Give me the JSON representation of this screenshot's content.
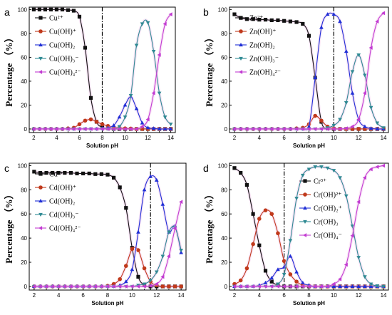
{
  "colors": {
    "black": "#111111",
    "red": "#c0391b",
    "blue": "#1f2fd6",
    "teal": "#2f8a93",
    "magenta": "#c23cd2",
    "axis": "#000000"
  },
  "chart_data": [
    {
      "panel": "a",
      "type": "line",
      "xlabel": "Solution pH",
      "ylabel": "Percentage （%）",
      "xlim": [
        1.6,
        14.4
      ],
      "ylim": [
        -3,
        102
      ],
      "xticks": [
        "2",
        "4",
        "6",
        "8",
        "10",
        "12",
        "14"
      ],
      "yticks": [
        "0",
        "20",
        "40",
        "60",
        "80",
        "100"
      ],
      "grid": false,
      "legend": "left",
      "vline": 8.0,
      "x": [
        2,
        2.5,
        3,
        3.5,
        4,
        4.5,
        5,
        5.5,
        6,
        6.5,
        7,
        7.5,
        8,
        8.5,
        9,
        9.5,
        10,
        10.5,
        11,
        11.5,
        12,
        12.5,
        13,
        13.5,
        14
      ],
      "series": [
        {
          "name": "Cu²⁺",
          "marker": "square",
          "color": "black",
          "values": [
            100,
            100,
            100,
            100,
            100,
            100,
            99.5,
            99,
            94,
            68,
            26,
            6,
            1.5,
            0.5,
            0,
            0,
            0,
            0,
            0,
            0,
            0,
            0,
            0,
            0,
            0
          ]
        },
        {
          "name": "Cu(OH)⁺",
          "marker": "circle",
          "color": "red",
          "values": [
            0,
            0,
            0,
            0,
            0,
            0,
            0.5,
            1,
            4,
            7,
            8,
            6,
            4,
            2.5,
            1.5,
            1,
            0.5,
            0.3,
            0,
            0,
            0,
            0,
            0,
            0,
            0
          ]
        },
        {
          "name": "Cu(OH)₂",
          "marker": "triangle-up",
          "color": "blue",
          "values": [
            0,
            0,
            0,
            0,
            0,
            0,
            0,
            0,
            0,
            0,
            0,
            0,
            0.5,
            1,
            3,
            10,
            20,
            27,
            17,
            5,
            1,
            0.5,
            0,
            0,
            0
          ]
        },
        {
          "name": "Cu(OH)₃⁻",
          "marker": "triangle-down",
          "color": "teal",
          "values": [
            0,
            0,
            0,
            0,
            0,
            0,
            0,
            0,
            0,
            0,
            0,
            0,
            0,
            0,
            0,
            2,
            10,
            28,
            70,
            88,
            89,
            65,
            30,
            10,
            4
          ]
        },
        {
          "name": "Cu(OH)₄²⁻",
          "marker": "triangle-left",
          "color": "magenta",
          "values": [
            0,
            0,
            0,
            0,
            0,
            0,
            0,
            0,
            0,
            0,
            0,
            0,
            0,
            0,
            0,
            0,
            0,
            0,
            0,
            2,
            8,
            30,
            62,
            88,
            96
          ]
        }
      ]
    },
    {
      "panel": "b",
      "type": "line",
      "xlabel": "Solution pH",
      "ylabel": "Percentage （%）",
      "xlim": [
        1.6,
        14.4
      ],
      "ylim": [
        -3,
        102
      ],
      "xticks": [
        "2",
        "4",
        "6",
        "8",
        "10",
        "12",
        "14"
      ],
      "yticks": [
        "0",
        "20",
        "40",
        "60",
        "80",
        "100"
      ],
      "grid": false,
      "legend": "left",
      "vline": 10.0,
      "x": [
        2,
        2.5,
        3,
        3.5,
        4,
        4.5,
        5,
        5.5,
        6,
        6.5,
        7,
        7.5,
        8,
        8.5,
        9,
        9.5,
        10,
        10.5,
        11,
        11.5,
        12,
        12.5,
        13,
        13.5,
        14
      ],
      "series": [
        {
          "name": "Zn²⁺",
          "marker": "square",
          "color": "black",
          "values": [
            96,
            93,
            92,
            92,
            91.5,
            91.5,
            91,
            91,
            90.5,
            90,
            89.5,
            88,
            78,
            43,
            6,
            0.5,
            0,
            0,
            0,
            0,
            0,
            0,
            0,
            0,
            0
          ]
        },
        {
          "name": "Zn(OH)⁺",
          "marker": "circle",
          "color": "red",
          "values": [
            0,
            0,
            0,
            0,
            0,
            0,
            0,
            0,
            0,
            0,
            0.5,
            1,
            4,
            11,
            7,
            2,
            0.5,
            0,
            0,
            0,
            0,
            0,
            0,
            0,
            0
          ]
        },
        {
          "name": "Zn(OH)₂",
          "marker": "triangle-up",
          "color": "blue",
          "values": [
            0,
            0,
            0,
            0,
            0,
            0,
            0,
            0,
            0,
            0,
            0,
            0,
            2,
            43,
            85,
            96,
            96,
            90,
            65,
            30,
            8,
            2,
            0.5,
            0,
            0
          ]
        },
        {
          "name": "Zn(OH)₃⁻",
          "marker": "triangle-down",
          "color": "teal",
          "values": [
            0,
            0,
            0,
            0,
            0,
            0,
            0,
            0,
            0,
            0,
            0,
            0,
            0,
            0,
            0,
            1,
            3,
            8,
            22,
            48,
            62,
            45,
            18,
            5,
            1
          ]
        },
        {
          "name": "Zn(OH)₄²⁻",
          "marker": "triangle-left",
          "color": "magenta",
          "values": [
            0,
            0,
            0,
            0,
            0,
            0,
            0,
            0,
            0,
            0,
            0,
            0,
            0,
            0,
            0,
            0,
            0,
            0,
            0.5,
            2,
            8,
            30,
            68,
            90,
            97
          ]
        }
      ]
    },
    {
      "panel": "c",
      "type": "line",
      "xlabel": "Solution pH",
      "ylabel": "Percentage （%）",
      "xlim": [
        1.6,
        14.4
      ],
      "ylim": [
        -3,
        102
      ],
      "xticks": [
        "2",
        "4",
        "6",
        "8",
        "10",
        "12",
        "14"
      ],
      "yticks": [
        "0",
        "20",
        "40",
        "60",
        "80",
        "100"
      ],
      "grid": false,
      "legend": "left",
      "vline": 11.5,
      "x": [
        2,
        2.5,
        3,
        3.5,
        4,
        4.5,
        5,
        5.5,
        6,
        6.5,
        7,
        7.5,
        8,
        8.5,
        9,
        9.5,
        10,
        10.5,
        11,
        11.5,
        12,
        12.5,
        13,
        13.5,
        14
      ],
      "series": [
        {
          "name": "Cd²⁺",
          "marker": "square",
          "color": "black",
          "values": [
            95,
            94,
            94,
            94,
            94,
            94,
            94,
            93.5,
            93.5,
            93.5,
            93,
            93,
            92.5,
            90,
            82,
            65,
            32,
            8,
            1,
            0,
            0,
            0,
            0,
            0,
            0
          ]
        },
        {
          "name": "Cd(OH)⁺",
          "marker": "circle",
          "color": "red",
          "values": [
            0,
            0,
            0,
            0,
            0,
            0,
            0,
            0,
            0,
            0,
            0,
            0,
            0.5,
            2,
            6,
            17,
            31,
            30,
            15,
            4,
            1,
            0,
            0,
            0,
            0
          ]
        },
        {
          "name": "Cd(OH)₂",
          "marker": "triangle-up",
          "color": "blue",
          "values": [
            0,
            0,
            0,
            0,
            0,
            0,
            0,
            0,
            0,
            0,
            0,
            0,
            0,
            0,
            1,
            4,
            14,
            45,
            80,
            91,
            88,
            68,
            45,
            50,
            28
          ]
        },
        {
          "name": "Cd(OH)₃⁻",
          "marker": "triangle-down",
          "color": "teal",
          "values": [
            0,
            0,
            0,
            0,
            0,
            0,
            0,
            0,
            0,
            0,
            0,
            0,
            0,
            0,
            0,
            0,
            0,
            1,
            2,
            5,
            12,
            25,
            45,
            49,
            30
          ]
        },
        {
          "name": "Cd(OH)₄²⁻",
          "marker": "triangle-left",
          "color": "magenta",
          "values": [
            0,
            0,
            0,
            0,
            0,
            0,
            0,
            0,
            0,
            0,
            0,
            0,
            0,
            0,
            0,
            0,
            0,
            0,
            0,
            0.5,
            2,
            8,
            25,
            48,
            70
          ]
        }
      ]
    },
    {
      "panel": "d",
      "type": "line",
      "xlabel": "Solution pH",
      "ylabel": "Percentage （%）",
      "xlim": [
        1.6,
        14.4
      ],
      "ylim": [
        -3,
        102
      ],
      "xticks": [
        "2",
        "4",
        "6",
        "8",
        "10",
        "12",
        "14"
      ],
      "yticks": [
        "0",
        "20",
        "40",
        "60",
        "80",
        "100"
      ],
      "grid": false,
      "legend": "right",
      "vline": 6.0,
      "x": [
        2,
        2.5,
        3,
        3.5,
        4,
        4.5,
        5,
        5.5,
        6,
        6.5,
        7,
        7.5,
        8,
        8.5,
        9,
        9.5,
        10,
        10.5,
        11,
        11.5,
        12,
        12.5,
        13,
        13.5,
        14
      ],
      "series": [
        {
          "name": "Cr³⁺",
          "marker": "square",
          "color": "black",
          "values": [
            98,
            94,
            84,
            60,
            34,
            13,
            4,
            1,
            0,
            0,
            0,
            0,
            0,
            0,
            0,
            0,
            0,
            0,
            0,
            0,
            0,
            0,
            0,
            0,
            0
          ]
        },
        {
          "name": "Cr(OH)²⁺",
          "marker": "circle",
          "color": "red",
          "values": [
            2,
            5,
            15,
            35,
            56,
            63,
            60,
            44,
            21,
            10,
            4,
            1,
            0.5,
            0,
            0,
            0,
            0,
            0,
            0,
            0,
            0,
            0,
            0,
            0,
            0
          ]
        },
        {
          "name": "Cr(OH)₂⁺",
          "marker": "triangle-up",
          "color": "blue",
          "values": [
            0,
            0,
            0,
            0,
            1,
            3,
            7,
            14,
            16,
            25,
            12,
            3,
            1,
            0,
            0,
            0,
            0,
            0,
            0,
            0,
            0,
            0,
            0,
            0,
            0
          ]
        },
        {
          "name": "Cr(OH)₃",
          "marker": "triangle-down",
          "color": "teal",
          "values": [
            0,
            0,
            0,
            0,
            0,
            0,
            0,
            2,
            10,
            38,
            73,
            92,
            97,
            99,
            99,
            98,
            96,
            90,
            75,
            50,
            24,
            8,
            2,
            0.5,
            0
          ]
        },
        {
          "name": "Cr(OH)₄⁻",
          "marker": "triangle-left",
          "color": "magenta",
          "values": [
            0,
            0,
            0,
            0,
            0,
            0,
            0,
            0,
            0,
            0,
            0,
            0,
            0,
            0,
            0,
            0,
            2,
            6,
            18,
            42,
            70,
            90,
            97,
            99,
            100
          ]
        }
      ]
    }
  ]
}
